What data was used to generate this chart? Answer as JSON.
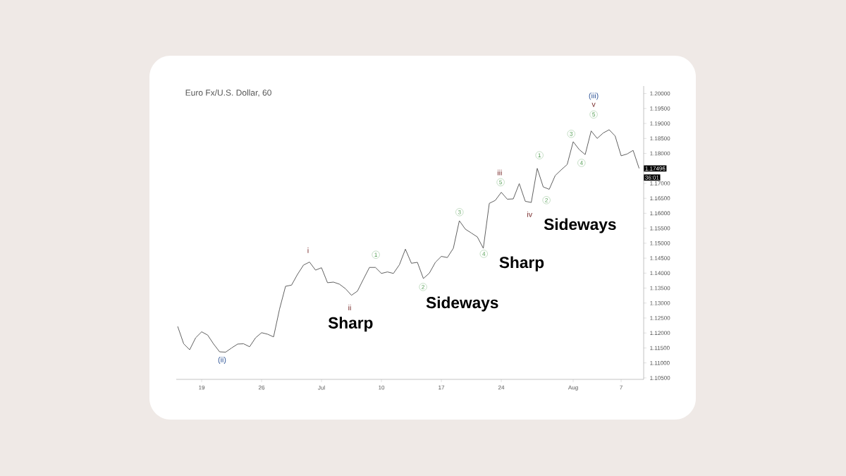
{
  "chart_data": {
    "type": "line",
    "title": "Euro Fx/U.S. Dollar, 60",
    "categories": [
      null,
      null,
      null,
      null,
      "19",
      null,
      null,
      null,
      null,
      null,
      null,
      null,
      null,
      null,
      "26",
      null,
      null,
      null,
      null,
      null,
      null,
      null,
      null,
      null,
      "Jul",
      null,
      null,
      null,
      null,
      null,
      null,
      null,
      null,
      null,
      "10",
      null,
      null,
      null,
      null,
      null,
      null,
      null,
      null,
      null,
      "17",
      null,
      null,
      null,
      null,
      null,
      null,
      null,
      null,
      null,
      "24",
      null,
      null,
      null,
      null,
      null,
      null,
      null,
      null,
      null,
      null,
      null,
      "Aug",
      null,
      null,
      null,
      null,
      null,
      null,
      null,
      "7",
      null,
      null,
      null
    ],
    "series": [
      {
        "color": "#555555",
        "values": [
          1.1222,
          1.1164,
          1.1144,
          1.1184,
          1.1204,
          1.1193,
          1.1163,
          1.1137,
          1.1136,
          1.115,
          1.1163,
          1.1164,
          1.1154,
          1.1184,
          1.1201,
          1.1196,
          1.1187,
          1.128,
          1.1356,
          1.136,
          1.1396,
          1.1427,
          1.1437,
          1.141,
          1.1418,
          1.1368,
          1.137,
          1.1363,
          1.1348,
          1.1326,
          1.134,
          1.138,
          1.1419,
          1.1419,
          1.1399,
          1.1404,
          1.1399,
          1.1428,
          1.148,
          1.1433,
          1.1436,
          1.1382,
          1.14,
          1.1436,
          1.1456,
          1.1452,
          1.1483,
          1.1575,
          1.1547,
          1.1534,
          1.1521,
          1.1483,
          1.1633,
          1.1643,
          1.167,
          1.1647,
          1.1648,
          1.1699,
          1.164,
          1.1636,
          1.175,
          1.1688,
          1.168,
          1.1726,
          1.1745,
          1.1763,
          1.1839,
          1.1813,
          1.1796,
          1.1875,
          1.185,
          1.1868,
          1.1879,
          1.1858,
          1.1792,
          1.1798,
          1.181,
          1.175
        ]
      }
    ],
    "ylim": [
      1.1045,
      1.2025
    ],
    "yticks": [
      {
        "value": 1.105,
        "label": "1.10500"
      },
      {
        "value": 1.11,
        "label": "1.11000"
      },
      {
        "value": 1.115,
        "label": "1.11500"
      },
      {
        "value": 1.12,
        "label": "1.12000"
      },
      {
        "value": 1.125,
        "label": "1.12500"
      },
      {
        "value": 1.13,
        "label": "1.13000"
      },
      {
        "value": 1.135,
        "label": "1.13500"
      },
      {
        "value": 1.14,
        "label": "1.14000"
      },
      {
        "value": 1.145,
        "label": "1.14500"
      },
      {
        "value": 1.15,
        "label": "1.15000"
      },
      {
        "value": 1.155,
        "label": "1.15500"
      },
      {
        "value": 1.16,
        "label": "1.16000"
      },
      {
        "value": 1.165,
        "label": "1.16500"
      },
      {
        "value": 1.17,
        "label": "1.17000"
      },
      {
        "value": 1.175,
        "label": null
      },
      {
        "value": 1.18,
        "label": "1.18000"
      },
      {
        "value": 1.185,
        "label": "1.18500"
      },
      {
        "value": 1.19,
        "label": "1.19000"
      },
      {
        "value": 1.195,
        "label": "1.19500"
      },
      {
        "value": 1.2,
        "label": "1.20000"
      }
    ],
    "annotations": [
      "(ii)",
      "i",
      "ii",
      "1",
      "2",
      "3",
      "4",
      "iii",
      "5",
      "iv",
      "1",
      "2",
      "3",
      "4",
      "5",
      "v",
      "(iii)",
      "Sharp",
      "Sideways",
      "Sharp",
      "Sideways",
      "1.17496",
      "36:01"
    ]
  }
}
